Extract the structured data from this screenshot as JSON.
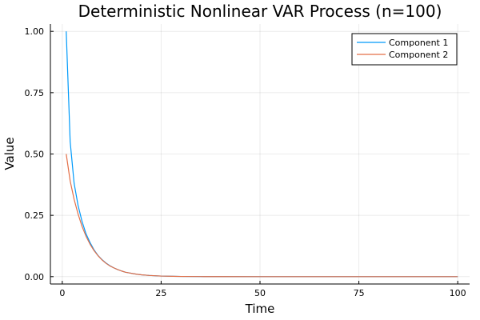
{
  "chart_data": {
    "type": "line",
    "title": "Deterministic Nonlinear VAR Process (n=100)",
    "xlabel": "Time",
    "ylabel": "Value",
    "xlim": [
      -3,
      103
    ],
    "ylim": [
      -0.03,
      1.03
    ],
    "xticks": [
      0,
      25,
      50,
      75,
      100
    ],
    "xtick_labels": [
      "0",
      "25",
      "50",
      "75",
      "100"
    ],
    "yticks": [
      0,
      0.25,
      0.5,
      0.75,
      1.0
    ],
    "ytick_labels": [
      "0.00",
      "0.25",
      "0.50",
      "0.75",
      "1.00"
    ],
    "grid": true,
    "legend_position": "top-right",
    "series": [
      {
        "name": "Component 1",
        "color": "#009AFA",
        "x": [
          1,
          2,
          3,
          4,
          5,
          6,
          7,
          8,
          9,
          10,
          11,
          12,
          13,
          14,
          15,
          16,
          17,
          18,
          19,
          20,
          22,
          25,
          28,
          30,
          35,
          40,
          50,
          60,
          70,
          80,
          90,
          100
        ],
        "y": [
          1.0,
          0.55,
          0.38,
          0.29,
          0.225,
          0.175,
          0.14,
          0.11,
          0.087,
          0.07,
          0.056,
          0.045,
          0.036,
          0.029,
          0.023,
          0.018,
          0.015,
          0.012,
          0.0095,
          0.0075,
          0.0048,
          0.0025,
          0.0013,
          0.0008,
          0.0003,
          0.0001,
          0.0,
          0.0,
          0.0,
          0.0,
          0.0,
          0.0
        ]
      },
      {
        "name": "Component 2",
        "color": "#E36F47",
        "x": [
          1,
          2,
          3,
          4,
          5,
          6,
          7,
          8,
          9,
          10,
          11,
          12,
          13,
          14,
          15,
          16,
          17,
          18,
          19,
          20,
          22,
          25,
          28,
          30,
          35,
          40,
          50,
          60,
          70,
          80,
          90,
          100
        ],
        "y": [
          0.5,
          0.39,
          0.315,
          0.255,
          0.205,
          0.165,
          0.133,
          0.107,
          0.086,
          0.069,
          0.055,
          0.044,
          0.036,
          0.029,
          0.023,
          0.018,
          0.015,
          0.012,
          0.0095,
          0.0075,
          0.0048,
          0.0025,
          0.0013,
          0.0008,
          0.0003,
          0.0001,
          0.0,
          0.0,
          0.0,
          0.0,
          0.0,
          0.0
        ]
      }
    ]
  }
}
